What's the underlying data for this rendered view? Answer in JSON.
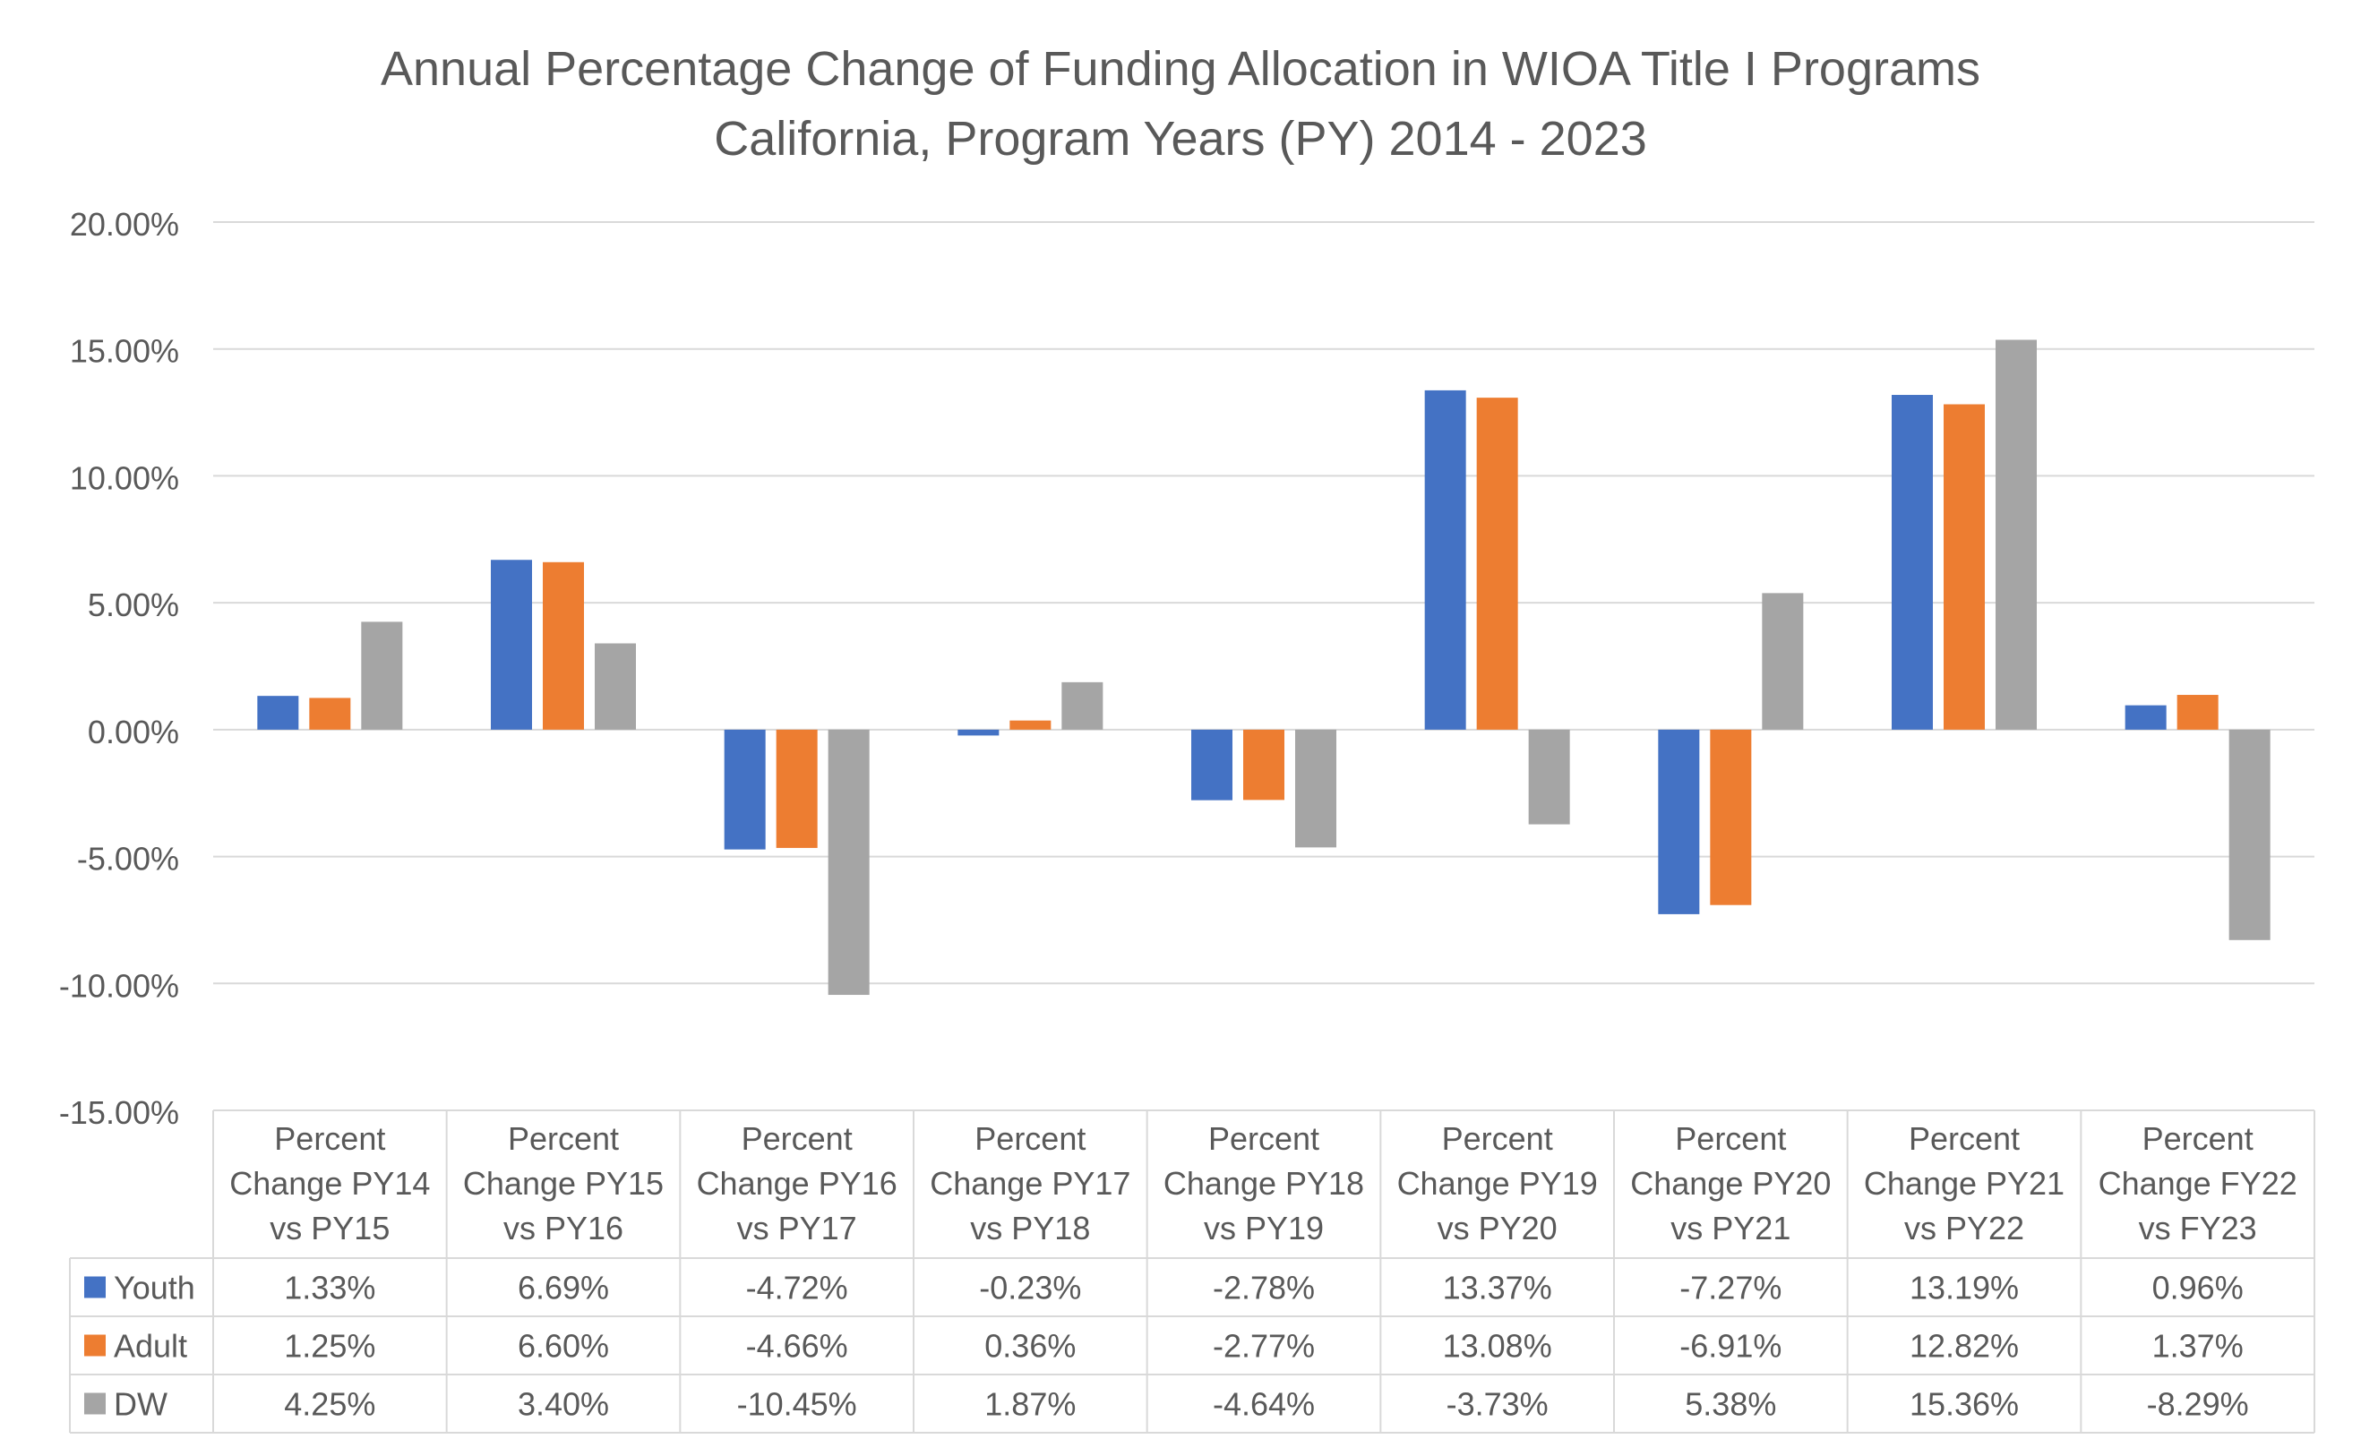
{
  "chart_data": {
    "type": "bar",
    "title": [
      "Annual Percentage Change of Funding Allocation in WIOA Title I Programs",
      "California, Program Years (PY) 2014 - 2023"
    ],
    "categories": [
      [
        "Percent",
        "Change PY14",
        "vs PY15"
      ],
      [
        "Percent",
        "Change PY15",
        "vs PY16"
      ],
      [
        "Percent",
        "Change PY16",
        "vs PY17"
      ],
      [
        "Percent",
        "Change PY17",
        "vs PY18"
      ],
      [
        "Percent",
        "Change PY18",
        "vs PY19"
      ],
      [
        "Percent",
        "Change PY19",
        "vs PY20"
      ],
      [
        "Percent",
        "Change PY20",
        "vs PY21"
      ],
      [
        "Percent",
        "Change PY21",
        "vs PY22"
      ],
      [
        "Percent",
        "Change FY22",
        "vs FY23"
      ]
    ],
    "series": [
      {
        "name": "Youth",
        "color": "#4472C4",
        "values": [
          1.33,
          6.69,
          -4.72,
          -0.23,
          -2.78,
          13.37,
          -7.27,
          13.19,
          0.96
        ],
        "labels": [
          "1.33%",
          "6.69%",
          "-4.72%",
          "-0.23%",
          "-2.78%",
          "13.37%",
          "-7.27%",
          "13.19%",
          "0.96%"
        ]
      },
      {
        "name": "Adult",
        "color": "#ED7D31",
        "values": [
          1.25,
          6.6,
          -4.66,
          0.36,
          -2.77,
          13.08,
          -6.91,
          12.82,
          1.37
        ],
        "labels": [
          "1.25%",
          "6.60%",
          "-4.66%",
          "0.36%",
          "-2.77%",
          "13.08%",
          "-6.91%",
          "12.82%",
          "1.37%"
        ]
      },
      {
        "name": "DW",
        "color": "#A5A5A5",
        "values": [
          4.25,
          3.4,
          -10.45,
          1.87,
          -4.64,
          -3.73,
          5.38,
          15.36,
          -8.29
        ],
        "labels": [
          "4.25%",
          "3.40%",
          "-10.45%",
          "1.87%",
          "-4.64%",
          "-3.73%",
          "5.38%",
          "15.36%",
          "-8.29%"
        ]
      }
    ],
    "yticks": [
      "20.00%",
      "15.00%",
      "10.00%",
      "5.00%",
      "0.00%",
      "-5.00%",
      "-10.00%",
      "-15.00%"
    ],
    "ylim": [
      -15,
      20
    ],
    "ytick_step": 5,
    "grid": true,
    "data_table": true,
    "gridline_color": "#D9D9D9",
    "text_color": "#595959"
  }
}
